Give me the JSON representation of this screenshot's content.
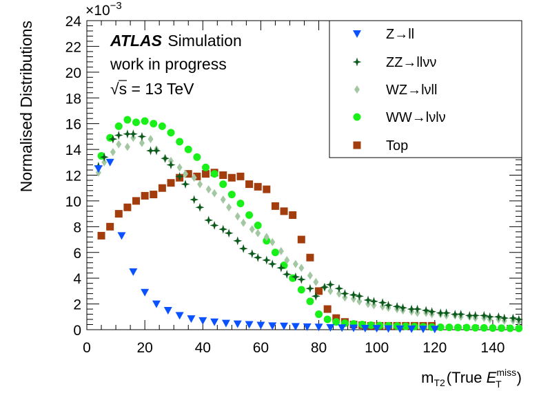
{
  "chart_data": {
    "type": "scatter",
    "ylabel": "Normalised Distributions",
    "xlabel": {
      "var": "m",
      "var_sub": "T2",
      "open": "(True ",
      "et": "E",
      "et_sup": "miss",
      "et_sub": "T",
      "close": ")"
    },
    "y_exponent": "×10",
    "y_exponent_power": "−3",
    "xlim": [
      0,
      150
    ],
    "ylim": [
      0,
      24
    ],
    "x_ticks": [
      0,
      20,
      40,
      60,
      80,
      100,
      120,
      140
    ],
    "y_ticks": [
      0,
      2,
      4,
      6,
      8,
      10,
      12,
      14,
      16,
      18,
      20,
      22,
      24
    ],
    "annotations": {
      "atlas": "ATLAS",
      "simulation": "Simulation",
      "line2": "work in progress",
      "sqrt_symbol": "√",
      "sqrt_arg": "s",
      "energy": " = 13 TeV"
    },
    "legend_position": "top-right",
    "series": [
      {
        "name": "Z→ll",
        "marker": "triangle-down",
        "color": "#0a52ff",
        "x": [
          4,
          8,
          12,
          16,
          20,
          24,
          28,
          32,
          36,
          40,
          44,
          48,
          52,
          56,
          60,
          64,
          68,
          72,
          76,
          80,
          84,
          88,
          92,
          96,
          100,
          104,
          108,
          112,
          116,
          120
        ],
        "y": [
          12.5,
          13.0,
          7.3,
          4.5,
          2.9,
          2.0,
          1.5,
          1.1,
          0.85,
          0.7,
          0.6,
          0.5,
          0.45,
          0.4,
          0.35,
          0.3,
          0.28,
          0.25,
          0.22,
          0.2,
          0.17,
          0.15,
          0.13,
          0.11,
          0.1,
          0.08,
          0.07,
          0.06,
          0.05,
          0.04
        ]
      },
      {
        "name": "ZZ→llνν",
        "marker": "star",
        "color": "#0b5a1c",
        "x": [
          4,
          6,
          9,
          11,
          14,
          16,
          19,
          22,
          24,
          27,
          29,
          32,
          34,
          37,
          39,
          42,
          44,
          47,
          49,
          52,
          54,
          57,
          59,
          62,
          64,
          67,
          69,
          72,
          74,
          77,
          79,
          82,
          84,
          87,
          89,
          92,
          94,
          97,
          99,
          102,
          104,
          107,
          109,
          112,
          114,
          117,
          119,
          122,
          124,
          127,
          129,
          132,
          134,
          137,
          139,
          142,
          144,
          147,
          149
        ],
        "y": [
          12.7,
          13.4,
          14.8,
          15.1,
          15.2,
          15.2,
          15.0,
          13.9,
          13.9,
          13.3,
          12.8,
          11.9,
          11.3,
          10.1,
          9.5,
          8.5,
          8.1,
          7.8,
          7.5,
          6.9,
          6.3,
          5.9,
          5.6,
          5.4,
          5.1,
          4.8,
          4.3,
          4.1,
          3.9,
          3.2,
          2.6,
          3.3,
          3.5,
          3.2,
          2.8,
          2.7,
          2.6,
          2.3,
          2.2,
          2.1,
          1.9,
          1.8,
          1.7,
          1.6,
          1.6,
          1.5,
          1.4,
          1.3,
          1.3,
          1.2,
          1.2,
          1.1,
          1.1,
          1.1,
          1.0,
          1.0,
          0.9,
          0.9,
          0.8
        ]
      },
      {
        "name": "WZ→lνll",
        "marker": "diamond",
        "color": "#a3c7a3",
        "x": [
          4,
          6,
          9,
          11,
          14,
          16,
          19,
          22,
          24,
          27,
          29,
          32,
          34,
          37,
          39,
          42,
          44,
          47,
          49,
          52,
          54,
          57,
          59,
          62,
          64,
          67,
          69,
          72,
          74,
          77,
          79,
          82,
          84,
          87,
          89,
          92,
          94,
          97,
          99,
          102,
          104,
          107,
          109,
          112,
          114,
          117,
          119,
          122,
          124,
          127,
          129,
          132,
          134,
          137,
          139,
          142,
          144,
          147,
          149
        ],
        "y": [
          12.2,
          13.0,
          13.8,
          14.4,
          14.2,
          14.9,
          14.5,
          14.8,
          14.0,
          13.3,
          13.1,
          12.6,
          12.1,
          11.8,
          11.3,
          10.9,
          10.6,
          10.1,
          9.5,
          8.8,
          8.3,
          7.8,
          7.5,
          7.2,
          6.8,
          6.1,
          5.4,
          5.1,
          4.8,
          4.2,
          3.7,
          3.3,
          3.0,
          2.8,
          2.5,
          2.4,
          2.2,
          2.0,
          1.9,
          1.8,
          1.7,
          1.6,
          1.5,
          1.4,
          1.3,
          1.3,
          1.2,
          1.2,
          1.1,
          1.1,
          1.0,
          1.0,
          0.9,
          0.9,
          0.8,
          0.8,
          0.7,
          0.7,
          0.6
        ]
      },
      {
        "name": "WW→lνlν",
        "marker": "circle",
        "color": "#19f019",
        "x": [
          5,
          8,
          11,
          14,
          17,
          20,
          23,
          26,
          29,
          32,
          35,
          38,
          41,
          44,
          47,
          50,
          53,
          56,
          59,
          62,
          65,
          68,
          71,
          74,
          77,
          80,
          83,
          86,
          89,
          92,
          95,
          98,
          101,
          104,
          107,
          110,
          113,
          116,
          119,
          122,
          125,
          128,
          131,
          134,
          137,
          140,
          143,
          146,
          149
        ],
        "y": [
          13.5,
          14.9,
          15.8,
          16.3,
          16.1,
          16.2,
          16.0,
          15.8,
          15.3,
          14.6,
          14.0,
          13.4,
          12.6,
          12.1,
          11.3,
          10.5,
          9.8,
          8.9,
          8.1,
          6.9,
          6.0,
          5.0,
          4.0,
          3.1,
          2.2,
          1.2,
          0.8,
          0.6,
          0.5,
          0.45,
          0.4,
          0.35,
          0.32,
          0.3,
          0.28,
          0.26,
          0.24,
          0.22,
          0.2,
          0.19,
          0.18,
          0.17,
          0.16,
          0.15,
          0.14,
          0.13,
          0.12,
          0.11,
          0.1
        ]
      },
      {
        "name": "Top",
        "marker": "square",
        "color": "#a33d0e",
        "x": [
          5,
          8,
          11,
          14,
          17,
          20,
          23,
          26,
          29,
          32,
          35,
          38,
          41,
          44,
          47,
          50,
          53,
          56,
          59,
          62,
          65,
          68,
          71,
          74,
          77,
          80,
          83,
          86,
          89,
          92,
          95,
          98,
          101,
          104,
          107,
          110,
          113,
          116,
          119
        ],
        "y": [
          7.3,
          8.0,
          9.0,
          9.5,
          10.0,
          10.4,
          10.5,
          11.0,
          11.4,
          11.8,
          12.1,
          11.9,
          12.1,
          12.2,
          12.0,
          11.8,
          11.9,
          11.3,
          11.1,
          10.9,
          9.6,
          9.2,
          8.9,
          7.0,
          5.6,
          3.0,
          1.6,
          0.9,
          0.6,
          0.4,
          0.35,
          0.3,
          0.3,
          0.3,
          0.3,
          0.3,
          0.3,
          0.3,
          0.3
        ]
      }
    ]
  }
}
